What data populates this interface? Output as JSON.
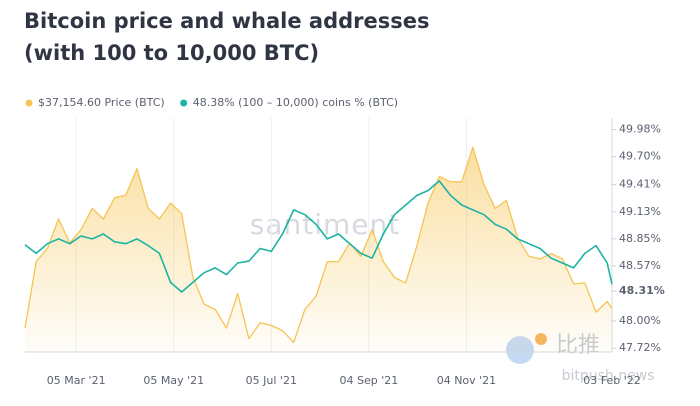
{
  "chart_data": {
    "type": "line",
    "title": "Bitcoin price and whale addresses",
    "subtitle": "(with 100 to 10,000 BTC)",
    "watermark": "santiment",
    "source_watermark": [
      "比推",
      "bitpush.news"
    ],
    "x": [
      "2021-02-01",
      "2021-02-08",
      "2021-02-15",
      "2021-02-22",
      "2021-03-01",
      "2021-03-08",
      "2021-03-15",
      "2021-03-22",
      "2021-03-29",
      "2021-04-05",
      "2021-04-12",
      "2021-04-19",
      "2021-04-26",
      "2021-05-03",
      "2021-05-10",
      "2021-05-17",
      "2021-05-24",
      "2021-05-31",
      "2021-06-07",
      "2021-06-14",
      "2021-06-21",
      "2021-06-28",
      "2021-07-05",
      "2021-07-12",
      "2021-07-19",
      "2021-07-26",
      "2021-08-02",
      "2021-08-09",
      "2021-08-16",
      "2021-08-23",
      "2021-08-30",
      "2021-09-06",
      "2021-09-13",
      "2021-09-20",
      "2021-09-27",
      "2021-10-04",
      "2021-10-11",
      "2021-10-18",
      "2021-10-25",
      "2021-11-01",
      "2021-11-08",
      "2021-11-15",
      "2021-11-22",
      "2021-11-29",
      "2021-12-06",
      "2021-12-13",
      "2021-12-20",
      "2021-12-27",
      "2022-01-03",
      "2022-01-10",
      "2022-01-17",
      "2022-01-24",
      "2022-01-31",
      "2022-02-03"
    ],
    "series": [
      {
        "name": "$37,154.60 Price (BTC)",
        "color": "#f6c453",
        "axis": "y",
        "area": true,
        "values": [
          33500,
          46000,
          48500,
          54000,
          49500,
          52000,
          56000,
          54000,
          58000,
          58500,
          63500,
          56000,
          54000,
          57000,
          55000,
          43000,
          38000,
          37000,
          33500,
          40000,
          31500,
          34500,
          34000,
          33000,
          30800,
          37000,
          39500,
          46000,
          46000,
          49500,
          47000,
          52000,
          46000,
          43000,
          42000,
          49000,
          57000,
          62000,
          61000,
          61000,
          67500,
          60500,
          56000,
          57500,
          50500,
          47000,
          46500,
          47500,
          46500,
          41800,
          42000,
          36500,
          38500,
          37154.6
        ]
      },
      {
        "name": "48.38% (100 – 10,000) coins % (BTC)",
        "color": "#1bb3a3",
        "axis": "y2",
        "values": [
          48.79,
          48.7,
          48.8,
          48.85,
          48.8,
          48.88,
          48.85,
          48.9,
          48.82,
          48.8,
          48.85,
          48.78,
          48.7,
          48.4,
          48.3,
          48.4,
          48.5,
          48.55,
          48.48,
          48.6,
          48.62,
          48.75,
          48.72,
          48.9,
          49.15,
          49.1,
          49.0,
          48.85,
          48.9,
          48.8,
          48.7,
          48.65,
          48.9,
          49.1,
          49.2,
          49.3,
          49.35,
          49.45,
          49.3,
          49.2,
          49.15,
          49.1,
          49.0,
          48.95,
          48.85,
          48.8,
          48.75,
          48.65,
          48.6,
          48.55,
          48.7,
          48.78,
          48.6,
          48.38
        ]
      }
    ],
    "xlim": [
      "2021-02-01",
      "2022-02-03"
    ],
    "xticks": [
      {
        "value": "2021-03-05",
        "label": "05 Mar '21"
      },
      {
        "value": "2021-05-05",
        "label": "05 May '21"
      },
      {
        "value": "2021-07-05",
        "label": "05 Jul '21"
      },
      {
        "value": "2021-09-04",
        "label": "04 Sep '21"
      },
      {
        "value": "2021-11-04",
        "label": "04 Nov '21"
      },
      {
        "value": "2022-02-03",
        "label": "03 Feb '22"
      }
    ],
    "ylim": [
      29000,
      73000
    ],
    "y2lim": [
      47.68,
      50.1
    ],
    "y2ticks": [
      {
        "value": 47.72,
        "label": "47.72%"
      },
      {
        "value": 48.0,
        "label": "48.00%"
      },
      {
        "value": 48.31,
        "label": "48.31%"
      },
      {
        "value": 48.57,
        "label": "48.57%"
      },
      {
        "value": 48.85,
        "label": "48.85%"
      },
      {
        "value": 49.13,
        "label": "49.13%"
      },
      {
        "value": 49.41,
        "label": "49.41%"
      },
      {
        "value": 49.7,
        "label": "49.70%"
      },
      {
        "value": 49.98,
        "label": "49.98%"
      }
    ],
    "grid": "x"
  }
}
